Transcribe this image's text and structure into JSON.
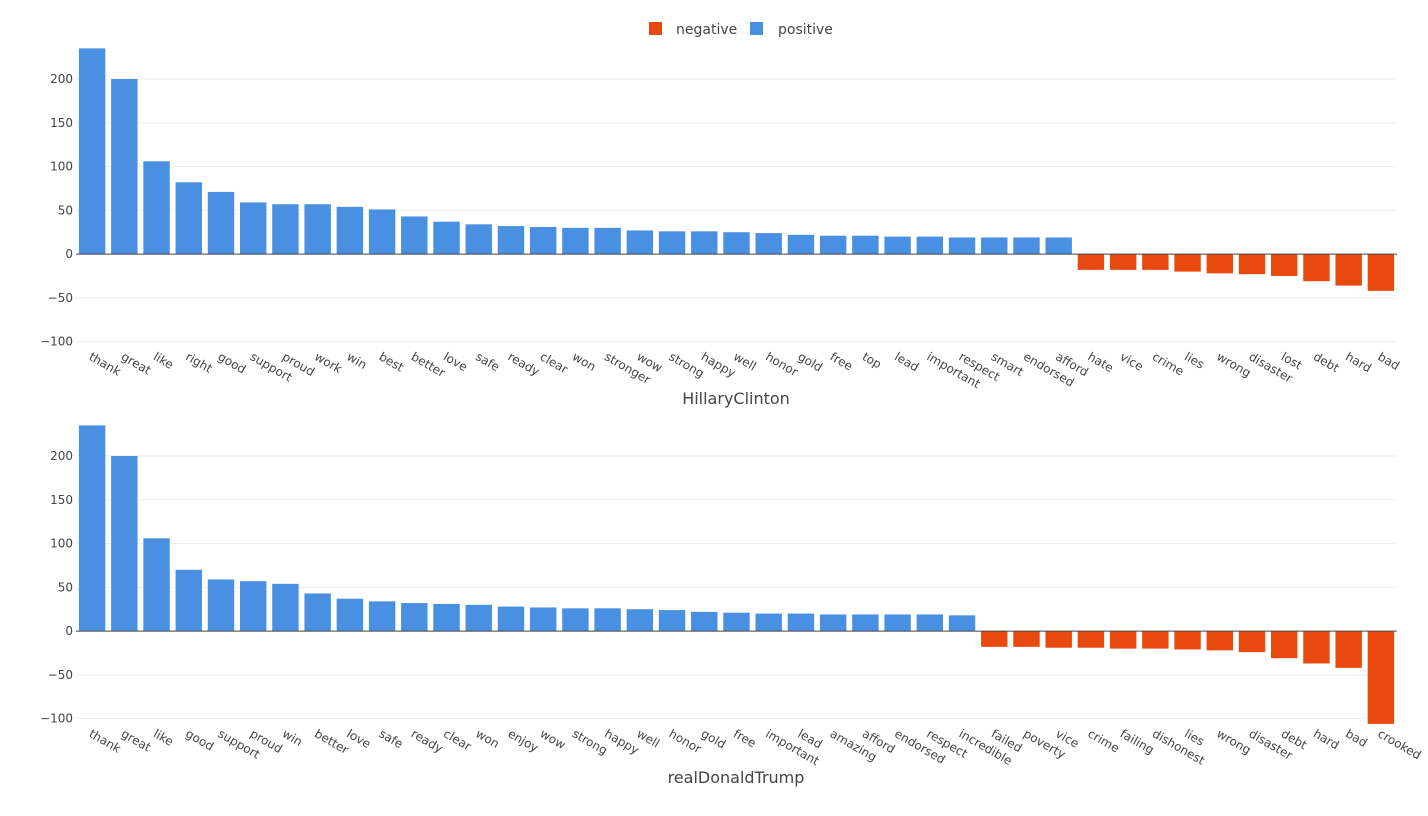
{
  "colors": {
    "positive": "#4a90e2",
    "negative": "#e8490f"
  },
  "legend": [
    {
      "key": "negative",
      "label": "negative",
      "color": "#e8490f"
    },
    {
      "key": "positive",
      "label": "positive",
      "color": "#4a90e2"
    }
  ],
  "chart_data": [
    {
      "type": "bar",
      "title": "HillaryClinton",
      "ylim": [
        -105,
        240
      ],
      "yticks": [
        -100,
        -50,
        0,
        50,
        100,
        150,
        200
      ],
      "grid": true,
      "legend_position": "top",
      "categories": [
        "thank",
        "great",
        "like",
        "right",
        "good",
        "support",
        "proud",
        "work",
        "win",
        "best",
        "better",
        "love",
        "safe",
        "ready",
        "clear",
        "won",
        "stronger",
        "wow",
        "strong",
        "happy",
        "well",
        "honor",
        "gold",
        "free",
        "top",
        "lead",
        "important",
        "respect",
        "smart",
        "endorsed",
        "afford",
        "hate",
        "vice",
        "crime",
        "lies",
        "wrong",
        "disaster",
        "lost",
        "debt",
        "hard",
        "bad"
      ],
      "values": [
        235,
        200,
        106,
        82,
        71,
        59,
        57,
        57,
        54,
        51,
        43,
        37,
        34,
        32,
        31,
        30,
        30,
        27,
        26,
        26,
        25,
        24,
        22,
        21,
        21,
        20,
        20,
        19,
        19,
        19,
        19,
        -18,
        -18,
        -18,
        -20,
        -22,
        -23,
        -25,
        -31,
        -36,
        -42
      ],
      "sentiment": [
        "positive",
        "positive",
        "positive",
        "positive",
        "positive",
        "positive",
        "positive",
        "positive",
        "positive",
        "positive",
        "positive",
        "positive",
        "positive",
        "positive",
        "positive",
        "positive",
        "positive",
        "positive",
        "positive",
        "positive",
        "positive",
        "positive",
        "positive",
        "positive",
        "positive",
        "positive",
        "positive",
        "positive",
        "positive",
        "positive",
        "positive",
        "negative",
        "negative",
        "negative",
        "negative",
        "negative",
        "negative",
        "negative",
        "negative",
        "negative",
        "negative"
      ]
    },
    {
      "type": "bar",
      "title": "realDonaldTrump",
      "ylim": [
        -105,
        240
      ],
      "yticks": [
        -100,
        -50,
        0,
        50,
        100,
        150,
        200
      ],
      "grid": true,
      "categories": [
        "thank",
        "great",
        "like",
        "good",
        "support",
        "proud",
        "win",
        "better",
        "love",
        "safe",
        "ready",
        "clear",
        "won",
        "enjoy",
        "wow",
        "strong",
        "happy",
        "well",
        "honor",
        "gold",
        "free",
        "important",
        "lead",
        "amazing",
        "afford",
        "endorsed",
        "respect",
        "incredible",
        "failed",
        "poverty",
        "vice",
        "crime",
        "failing",
        "dishonest",
        "lies",
        "wrong",
        "disaster",
        "debt",
        "hard",
        "bad",
        "crooked"
      ],
      "values": [
        235,
        200,
        106,
        70,
        59,
        57,
        54,
        43,
        37,
        34,
        32,
        31,
        30,
        28,
        27,
        26,
        26,
        25,
        24,
        22,
        21,
        20,
        20,
        19,
        19,
        19,
        19,
        18,
        -18,
        -18,
        -19,
        -19,
        -20,
        -20,
        -21,
        -22,
        -24,
        -31,
        -37,
        -42,
        -106
      ],
      "sentiment": [
        "positive",
        "positive",
        "positive",
        "positive",
        "positive",
        "positive",
        "positive",
        "positive",
        "positive",
        "positive",
        "positive",
        "positive",
        "positive",
        "positive",
        "positive",
        "positive",
        "positive",
        "positive",
        "positive",
        "positive",
        "positive",
        "positive",
        "positive",
        "positive",
        "positive",
        "positive",
        "positive",
        "positive",
        "negative",
        "negative",
        "negative",
        "negative",
        "negative",
        "negative",
        "negative",
        "negative",
        "negative",
        "negative",
        "negative",
        "negative",
        "negative"
      ]
    }
  ]
}
